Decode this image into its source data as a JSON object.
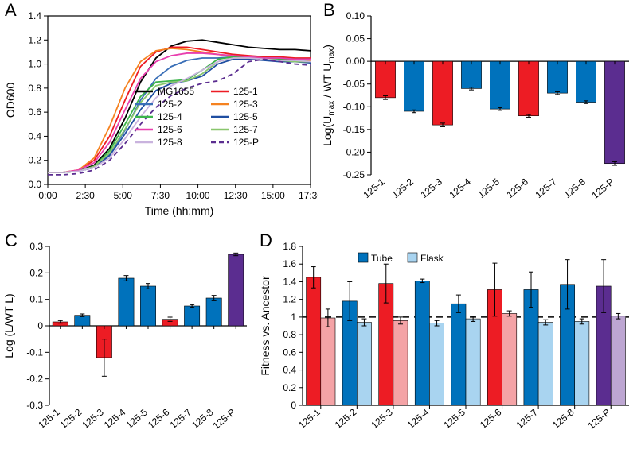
{
  "colors": {
    "red": "#ed1c24",
    "blue": "#0072bc",
    "purple": "#5b2d90",
    "lightred": "#f4a3a6",
    "lightblue": "#a9d4f0",
    "lightpurple": "#bda6d2",
    "black": "#000000",
    "axis": "#000000"
  },
  "panelA": {
    "label": "A",
    "ylabel": "OD600",
    "xlabel": "Time  (hh:mm)",
    "xlim": [
      0,
      17.5
    ],
    "ylim": [
      0,
      1.4
    ],
    "yticks": [
      0,
      0.2,
      0.4,
      0.6,
      0.8,
      1.0,
      1.2,
      1.4
    ],
    "xticks": [
      "0:00",
      "2:30",
      "5:00",
      "7:30",
      "10:00",
      "12:30",
      "15:00",
      "17:30"
    ],
    "series": [
      {
        "name": "MG1655",
        "color": "#000000",
        "dash": "",
        "y": [
          0.1,
          0.1,
          0.11,
          0.16,
          0.3,
          0.55,
          0.85,
          1.05,
          1.15,
          1.19,
          1.2,
          1.18,
          1.16,
          1.14,
          1.13,
          1.12,
          1.12,
          1.11
        ]
      },
      {
        "name": "125-1",
        "color": "#ed1c24",
        "dash": "",
        "y": [
          0.1,
          0.1,
          0.12,
          0.2,
          0.4,
          0.7,
          0.98,
          1.1,
          1.14,
          1.14,
          1.12,
          1.1,
          1.08,
          1.07,
          1.06,
          1.06,
          1.05,
          1.05
        ]
      },
      {
        "name": "125-2",
        "color": "#3a6fb7",
        "dash": "",
        "y": [
          0.1,
          0.1,
          0.11,
          0.14,
          0.25,
          0.45,
          0.7,
          0.88,
          0.98,
          1.03,
          1.05,
          1.05,
          1.06,
          1.05,
          1.05,
          1.05,
          1.04,
          1.04
        ]
      },
      {
        "name": "125-3",
        "color": "#f58220",
        "dash": "",
        "y": [
          0.1,
          0.1,
          0.12,
          0.22,
          0.48,
          0.8,
          1.02,
          1.11,
          1.13,
          1.12,
          1.1,
          1.08,
          1.06,
          1.05,
          1.04,
          1.04,
          1.03,
          1.03
        ]
      },
      {
        "name": "125-4",
        "color": "#3cb44b",
        "dash": "",
        "y": [
          0.1,
          0.1,
          0.11,
          0.15,
          0.28,
          0.5,
          0.73,
          0.85,
          0.86,
          0.87,
          0.95,
          1.04,
          1.06,
          1.06,
          1.05,
          1.04,
          1.03,
          1.02
        ]
      },
      {
        "name": "125-5",
        "color": "#1f4ea1",
        "dash": "",
        "y": [
          0.1,
          0.1,
          0.11,
          0.14,
          0.24,
          0.42,
          0.62,
          0.78,
          0.84,
          0.86,
          0.9,
          1.0,
          1.04,
          1.04,
          1.03,
          1.02,
          1.02,
          1.01
        ]
      },
      {
        "name": "125-6",
        "color": "#e83fae",
        "dash": "",
        "y": [
          0.1,
          0.1,
          0.12,
          0.18,
          0.35,
          0.62,
          0.88,
          1.02,
          1.07,
          1.09,
          1.09,
          1.08,
          1.07,
          1.06,
          1.05,
          1.05,
          1.04,
          1.04
        ]
      },
      {
        "name": "125-7",
        "color": "#89c66d",
        "dash": "",
        "y": [
          0.1,
          0.1,
          0.11,
          0.15,
          0.26,
          0.46,
          0.68,
          0.82,
          0.85,
          0.86,
          0.92,
          1.02,
          1.05,
          1.05,
          1.04,
          1.03,
          1.02,
          1.02
        ]
      },
      {
        "name": "125-8",
        "color": "#c9b3de",
        "dash": "",
        "y": [
          0.1,
          0.1,
          0.11,
          0.14,
          0.22,
          0.38,
          0.56,
          0.72,
          0.82,
          0.88,
          0.95,
          1.02,
          1.05,
          1.05,
          1.04,
          1.03,
          1.03,
          1.02
        ]
      },
      {
        "name": "125-P",
        "color": "#5b2d90",
        "dash": "6,4",
        "y": [
          0.08,
          0.08,
          0.09,
          0.12,
          0.2,
          0.34,
          0.5,
          0.64,
          0.74,
          0.8,
          0.84,
          0.86,
          0.92,
          1.02,
          1.04,
          1.02,
          1.0,
          0.99
        ]
      }
    ],
    "legend_cols": [
      [
        "MG1655",
        "125-2",
        "125-4",
        "125-6",
        "125-8"
      ],
      [
        "125-1",
        "125-3",
        "125-5",
        "125-7",
        "125-P"
      ]
    ]
  },
  "panelB": {
    "label": "B",
    "ylabel": "Log(U_max / WT U_max)",
    "ylabel_parts": [
      "Log(U",
      "max",
      " / WT U",
      "max",
      ")"
    ],
    "ylim": [
      -0.25,
      0.1
    ],
    "yticks": [
      -0.25,
      -0.2,
      -0.15,
      -0.1,
      -0.05,
      0.0,
      0.05,
      0.1
    ],
    "categories": [
      "125-1",
      "125-2",
      "125-3",
      "125-4",
      "125-5",
      "125-6",
      "125-7",
      "125-8",
      "125-P"
    ],
    "values": [
      -0.08,
      -0.11,
      -0.14,
      -0.06,
      -0.105,
      -0.12,
      -0.07,
      -0.09,
      -0.225
    ],
    "errors": [
      0.004,
      0.003,
      0.004,
      0.003,
      0.003,
      0.003,
      0.003,
      0.003,
      0.004
    ],
    "colors": [
      "#ed1c24",
      "#0072bc",
      "#ed1c24",
      "#0072bc",
      "#0072bc",
      "#ed1c24",
      "#0072bc",
      "#0072bc",
      "#5b2d90"
    ]
  },
  "panelC": {
    "label": "C",
    "ylabel": "Log (L/WT L)",
    "ylim": [
      -0.3,
      0.3
    ],
    "yticks": [
      -0.3,
      -0.2,
      -0.1,
      0,
      0.1,
      0.2,
      0.3
    ],
    "categories": [
      "125-1",
      "125-2",
      "125-3",
      "125-4",
      "125-5",
      "125-6",
      "125-7",
      "125-8",
      "125-P"
    ],
    "values": [
      0.015,
      0.04,
      -0.12,
      0.18,
      0.15,
      0.025,
      0.075,
      0.105,
      0.27
    ],
    "errors": [
      0.005,
      0.005,
      0.07,
      0.01,
      0.01,
      0.008,
      0.005,
      0.01,
      0.005
    ],
    "colors": [
      "#ed1c24",
      "#0072bc",
      "#ed1c24",
      "#0072bc",
      "#0072bc",
      "#ed1c24",
      "#0072bc",
      "#0072bc",
      "#5b2d90"
    ]
  },
  "panelD": {
    "label": "D",
    "ylabel": "Fitness vs. Ancestor",
    "ylim": [
      0,
      1.8
    ],
    "yticks": [
      0,
      0.2,
      0.4,
      0.6,
      0.8,
      1.0,
      1.2,
      1.4,
      1.6,
      1.8
    ],
    "categories": [
      "125-1",
      "125-2",
      "125-3",
      "125-4",
      "125-5",
      "125-6",
      "125-7",
      "125-8",
      "125-P"
    ],
    "legend": {
      "tube": "Tube",
      "flask": "Flask"
    },
    "tube_values": [
      1.45,
      1.18,
      1.38,
      1.41,
      1.15,
      1.31,
      1.31,
      1.37,
      1.35
    ],
    "tube_errors": [
      0.12,
      0.22,
      0.22,
      0.02,
      0.1,
      0.3,
      0.2,
      0.28,
      0.3
    ],
    "flask_values": [
      0.99,
      0.94,
      0.96,
      0.93,
      0.98,
      1.04,
      0.94,
      0.95,
      1.01
    ],
    "flask_errors": [
      0.1,
      0.04,
      0.04,
      0.03,
      0.03,
      0.03,
      0.03,
      0.03,
      0.03
    ],
    "tube_colors": [
      "#ed1c24",
      "#0072bc",
      "#ed1c24",
      "#0072bc",
      "#0072bc",
      "#ed1c24",
      "#0072bc",
      "#0072bc",
      "#5b2d90"
    ],
    "flask_colors": [
      "#f4a3a6",
      "#a9d4f0",
      "#f4a3a6",
      "#a9d4f0",
      "#a9d4f0",
      "#f4a3a6",
      "#a9d4f0",
      "#a9d4f0",
      "#bda6d2"
    ],
    "ref_line": 1.0
  }
}
